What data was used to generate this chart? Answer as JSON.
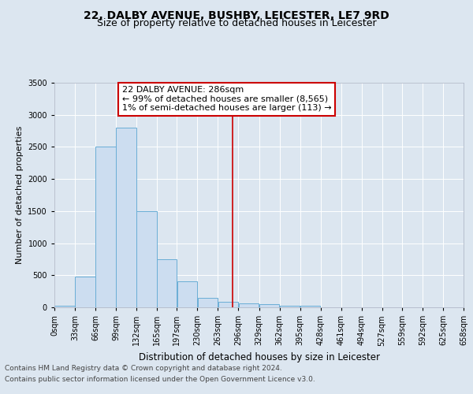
{
  "title": "22, DALBY AVENUE, BUSHBY, LEICESTER, LE7 9RD",
  "subtitle": "Size of property relative to detached houses in Leicester",
  "xlabel": "Distribution of detached houses by size in Leicester",
  "ylabel": "Number of detached properties",
  "footer_line1": "Contains HM Land Registry data © Crown copyright and database right 2024.",
  "footer_line2": "Contains public sector information licensed under the Open Government Licence v3.0.",
  "annotation_line1": "22 DALBY AVENUE: 286sqm",
  "annotation_line2": "← 99% of detached houses are smaller (8,565)",
  "annotation_line3": "1% of semi-detached houses are larger (113) →",
  "bar_edges": [
    0,
    33,
    66,
    99,
    132,
    165,
    197,
    230,
    263,
    296,
    329,
    362,
    395,
    428,
    461,
    494,
    527,
    559,
    592,
    625,
    658
  ],
  "bar_heights": [
    25,
    480,
    2500,
    2800,
    1500,
    750,
    400,
    150,
    80,
    60,
    50,
    30,
    20,
    5,
    0,
    0,
    0,
    0,
    0,
    0
  ],
  "bar_color": "#ccddf0",
  "bar_edge_color": "#6aaed6",
  "vline_x": 286,
  "vline_color": "#cc0000",
  "annotation_box_facecolor": "#ffffff",
  "annotation_box_edgecolor": "#cc0000",
  "ylim": [
    0,
    3500
  ],
  "xlim": [
    0,
    658
  ],
  "yticks": [
    0,
    500,
    1000,
    1500,
    2000,
    2500,
    3000,
    3500
  ],
  "xtick_labels": [
    "0sqm",
    "33sqm",
    "66sqm",
    "99sqm",
    "132sqm",
    "165sqm",
    "197sqm",
    "230sqm",
    "263sqm",
    "296sqm",
    "329sqm",
    "362sqm",
    "395sqm",
    "428sqm",
    "461sqm",
    "494sqm",
    "527sqm",
    "559sqm",
    "592sqm",
    "625sqm",
    "658sqm"
  ],
  "xtick_positions": [
    0,
    33,
    66,
    99,
    132,
    165,
    197,
    230,
    263,
    296,
    329,
    362,
    395,
    428,
    461,
    494,
    527,
    559,
    592,
    625,
    658
  ],
  "bg_color": "#dce6f0",
  "plot_bg_color": "#dce6f0",
  "grid_color": "#ffffff",
  "title_fontsize": 10,
  "subtitle_fontsize": 9,
  "axis_label_fontsize": 8.5,
  "ylabel_fontsize": 8,
  "tick_fontsize": 7,
  "annotation_fontsize": 8,
  "footer_fontsize": 6.5
}
